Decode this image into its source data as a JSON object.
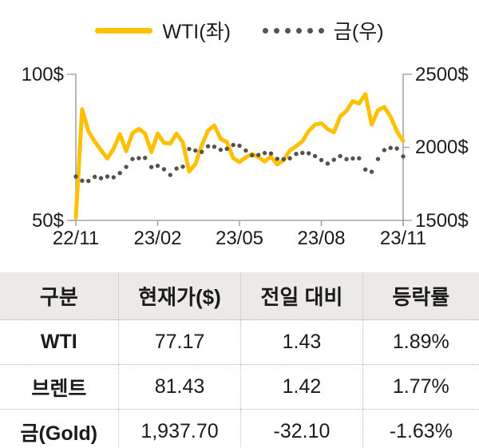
{
  "legend": {
    "wti_label": "WTI(좌)",
    "gold_label": "금(우)"
  },
  "chart_data": {
    "type": "line",
    "title": "WTI vs Gold price, dual axis, 22/11 - 23/11",
    "x_tick_labels": [
      "22/11",
      "23/02",
      "23/05",
      "23/08",
      "23/11"
    ],
    "left_axis": {
      "unit": "$",
      "min": 50,
      "max": 100,
      "labels": [
        "100$",
        "50$"
      ]
    },
    "right_axis": {
      "unit": "$",
      "min": 1500,
      "max": 2500,
      "labels": [
        "2500$",
        "2000$",
        "1500$"
      ]
    },
    "grid": false,
    "legend_position": "top-center",
    "series": [
      {
        "name": "WTI(좌)",
        "axis": "left",
        "style": "solid",
        "color": "#FFC000",
        "values": [
          51,
          88,
          80.5,
          77,
          74,
          71.2,
          74.5,
          79.5,
          73.7,
          79.9,
          81.3,
          79.7,
          73.4,
          79.7,
          76.5,
          76.3,
          79.7,
          76.7,
          66.7,
          69.3,
          75.7,
          80.7,
          82.5,
          77.9,
          76.8,
          71.3,
          70.0,
          71.6,
          72.7,
          71.7,
          70.2,
          71.8,
          69.2,
          70.6,
          73.9,
          75.4,
          77.1,
          80.6,
          82.8,
          83.2,
          81.3,
          80.1,
          85.6,
          87.5,
          90.8,
          90.0,
          93.2,
          82.8,
          87.7,
          88.8,
          85.5,
          80.5,
          77.2
        ]
      },
      {
        "name": "금(우)",
        "axis": "right",
        "style": "dotted",
        "color": "#56524A",
        "values": [
          1800,
          1772,
          1770,
          1798,
          1789,
          1800,
          1795,
          1824,
          1866,
          1920,
          1926,
          1928,
          1865,
          1874,
          1850,
          1811,
          1855,
          1868,
          1989,
          1978,
          1969,
          2007,
          2004,
          1983,
          1990,
          2016,
          2011,
          1978,
          1946,
          1948,
          1961,
          1958,
          1921,
          1919,
          1925,
          1955,
          1962,
          1959,
          1940,
          1913,
          1889,
          1915,
          1940,
          1919,
          1924,
          1925,
          1848,
          1833,
          1920,
          1981,
          1996,
          1992,
          1938
        ]
      }
    ]
  },
  "table": {
    "headers": [
      "구분",
      "현재가($)",
      "전일 대비",
      "등락률"
    ],
    "rows": [
      {
        "label": "WTI",
        "price": "77.17",
        "change": "1.43",
        "pct": "1.89%"
      },
      {
        "label": "브렌트",
        "price": "81.43",
        "change": "1.42",
        "pct": "1.77%"
      },
      {
        "label": "금(Gold)",
        "price": "1,937.70",
        "change": "-32.10",
        "pct": "-1.63%"
      }
    ]
  },
  "colors": {
    "wti_line": "#FFC000",
    "gold_dots": "#56524A",
    "axis": "#A6A6A6",
    "table_header_bg": "#ECEAE6",
    "text": "#1b1b1b"
  }
}
